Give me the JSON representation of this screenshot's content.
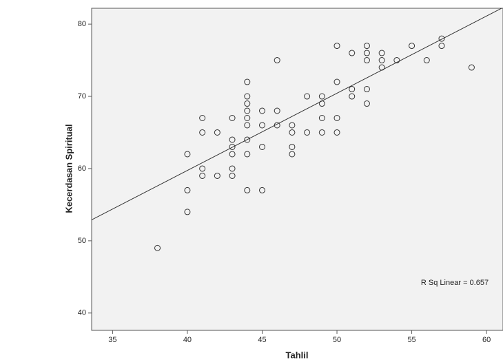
{
  "chart_data": {
    "type": "scatter",
    "x_label": "Tahlil",
    "y_label": "Kecerdasan Spiritual",
    "annotation": "R Sq Linear = 0.657",
    "xlim": [
      33.6,
      61.1
    ],
    "ylim": [
      37.6,
      82.2
    ],
    "xticks": [
      35,
      40,
      45,
      50,
      55,
      60
    ],
    "yticks": [
      40,
      50,
      60,
      70,
      80
    ],
    "color": "#333333",
    "fit_line": {
      "x": [
        33.6,
        61.1
      ],
      "y": [
        52.9,
        82.3
      ],
      "color": "#333333"
    },
    "x": [
      38,
      40,
      40,
      40,
      41,
      41,
      41,
      41,
      42,
      42,
      43,
      43,
      43,
      43,
      43,
      43,
      44,
      44,
      44,
      44,
      44,
      44,
      44,
      44,
      44,
      45,
      45,
      45,
      45,
      46,
      46,
      46,
      47,
      47,
      47,
      47,
      48,
      48,
      49,
      49,
      49,
      49,
      50,
      50,
      50,
      50,
      51,
      51,
      51,
      52,
      52,
      52,
      52,
      52,
      53,
      53,
      53,
      54,
      55,
      56,
      57,
      57,
      59
    ],
    "y": [
      49,
      62,
      57,
      54,
      67,
      65,
      60,
      59,
      65,
      59,
      67,
      64,
      63,
      62,
      60,
      59,
      72,
      70,
      69,
      68,
      67,
      66,
      64,
      62,
      57,
      68,
      66,
      63,
      57,
      75,
      68,
      66,
      66,
      65,
      63,
      62,
      70,
      65,
      70,
      69,
      67,
      65,
      77,
      72,
      67,
      65,
      76,
      71,
      70,
      77,
      76,
      75,
      71,
      69,
      76,
      75,
      74,
      75,
      77,
      75,
      78,
      77,
      74
    ]
  }
}
